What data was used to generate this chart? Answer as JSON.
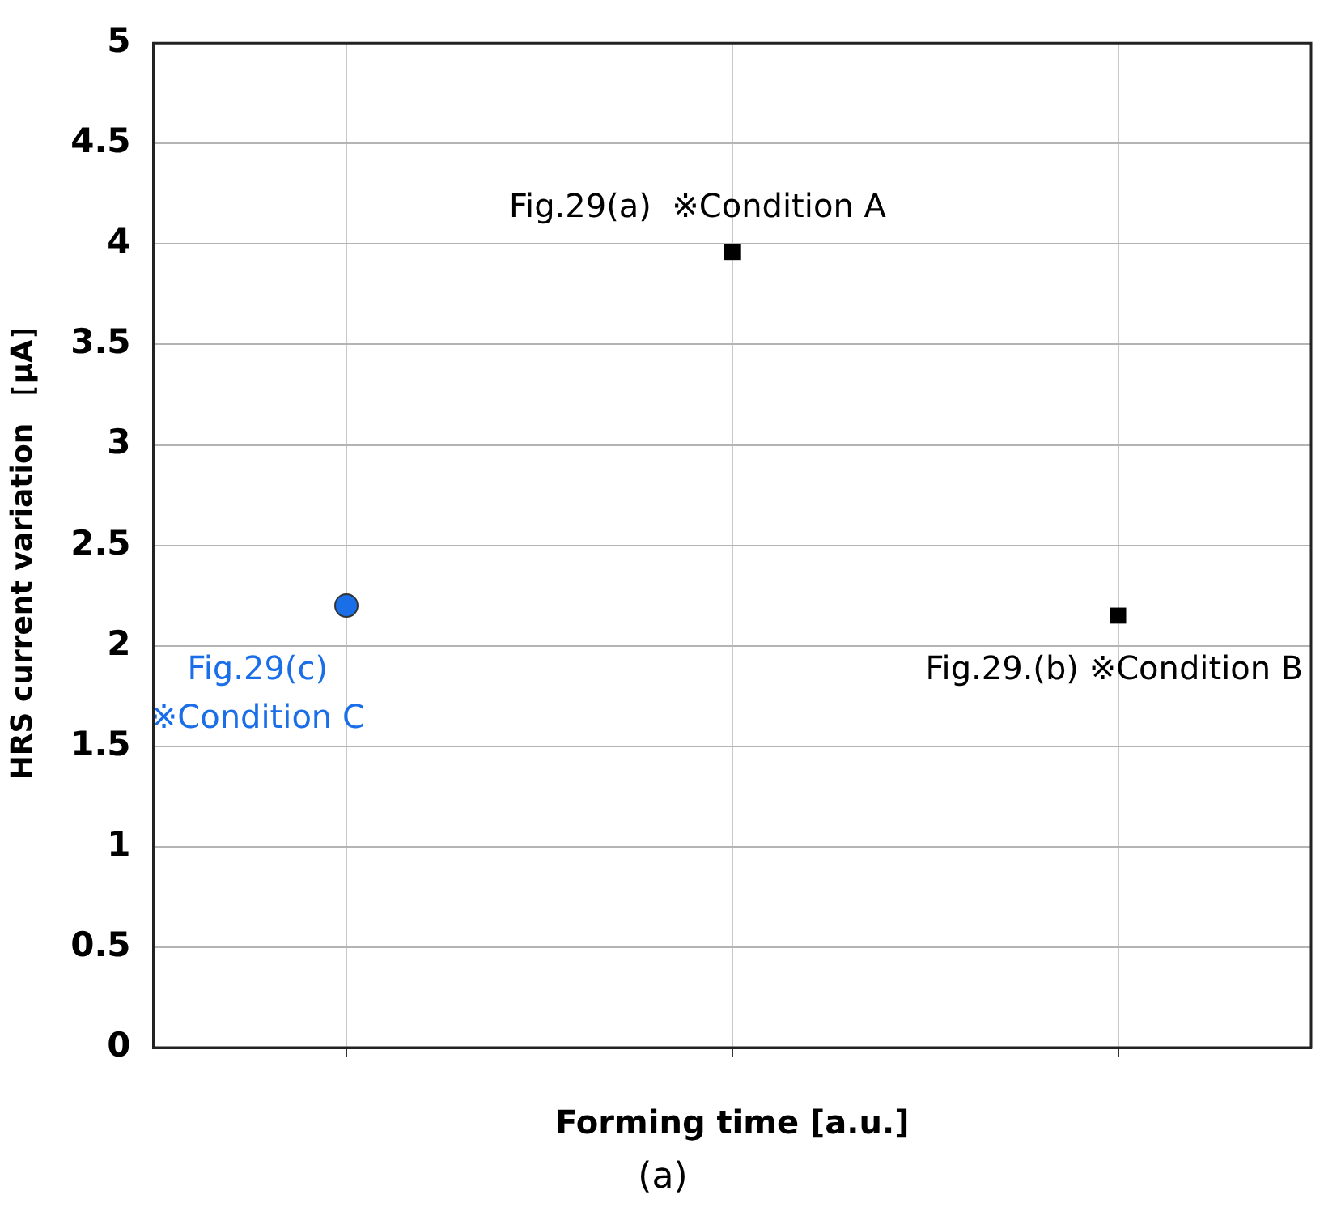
{
  "chart_data": {
    "type": "scatter",
    "xlabel": "Forming time [a.u.]",
    "ylabel": "HRS current variation ［μA］",
    "grid": true,
    "tick_labels": "y",
    "legend": false,
    "categories": [
      null,
      null,
      null
    ],
    "ylim": [
      0,
      5
    ],
    "yticks": [
      0,
      0.5,
      1,
      1.5,
      2,
      2.5,
      3,
      3.5,
      4,
      4.5,
      5
    ],
    "series": [
      {
        "color": "#000000",
        "marker": "square",
        "values": [
          null,
          3.96,
          2.15
        ]
      },
      {
        "color": "#1a6fe8",
        "marker": "circle",
        "values": [
          2.2,
          null,
          null
        ]
      }
    ],
    "annotations": [
      "Fig.29(a)  ※Condition A",
      "Fig.29.(b) ※Condition B",
      "Fig.29(c)\n※Condition C",
      "(a)"
    ]
  }
}
